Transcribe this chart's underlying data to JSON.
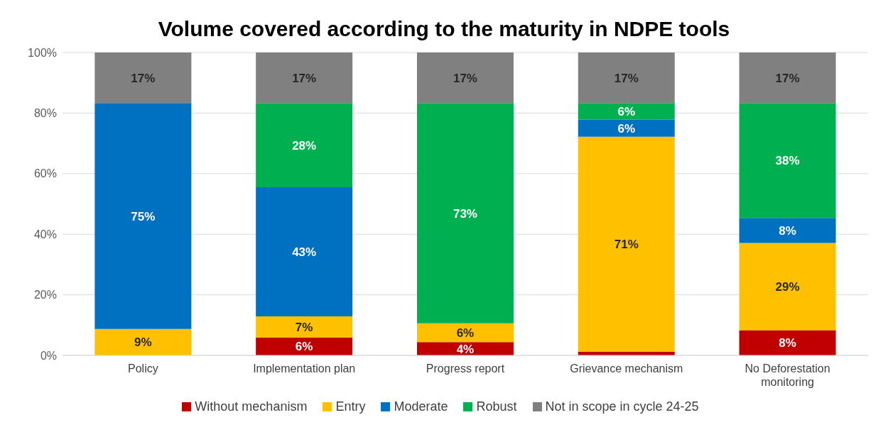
{
  "chart_data": {
    "type": "bar",
    "title": "Volume covered according to the maturity in NDPE tools",
    "categories": [
      "Policy",
      "Implementation plan",
      "Progress report",
      "Grievance mechanism",
      "No Deforestation monitoring"
    ],
    "stacked": true,
    "ylim": [
      0,
      100
    ],
    "yticks": [
      {
        "value": 0,
        "label": "0%"
      },
      {
        "value": 20,
        "label": "20%"
      },
      {
        "value": 40,
        "label": "40%"
      },
      {
        "value": 60,
        "label": "60%"
      },
      {
        "value": 80,
        "label": "80%"
      },
      {
        "value": 100,
        "label": "100%"
      }
    ],
    "grid": "y",
    "legend": "bottom",
    "series": [
      {
        "name": "Without mechanism",
        "color": "#c00000",
        "values": [
          0,
          5.9,
          4.4,
          1.2,
          8.3
        ],
        "value_labels": [
          null,
          "6%",
          "4%",
          null,
          "8%"
        ]
      },
      {
        "name": "Entry",
        "color": "#ffc000",
        "values": [
          8.7,
          7.0,
          6.2,
          71.0,
          28.8
        ],
        "value_labels": [
          "9%",
          "7%",
          "6%",
          "71%",
          "29%"
        ]
      },
      {
        "name": "Moderate",
        "color": "#0070c0",
        "values": [
          74.6,
          42.6,
          0,
          5.6,
          8.3
        ],
        "value_labels": [
          "75%",
          "43%",
          null,
          "6%",
          "8%"
        ]
      },
      {
        "name": "Robust",
        "color": "#00b050",
        "values": [
          0,
          27.8,
          72.7,
          5.5,
          37.9
        ],
        "value_labels": [
          null,
          "28%",
          "73%",
          "6%",
          "38%"
        ]
      },
      {
        "name": "Not in scope in cycle 24-25",
        "color": "#808080",
        "values": [
          16.7,
          16.7,
          16.7,
          16.7,
          16.7
        ],
        "value_labels": [
          "17%",
          "17%",
          "17%",
          "17%",
          "17%"
        ]
      }
    ]
  }
}
